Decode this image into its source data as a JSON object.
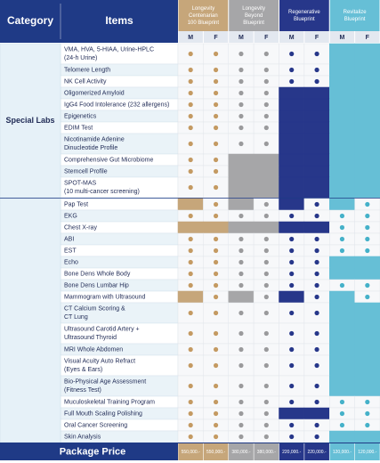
{
  "header": {
    "category": "Category",
    "items": "Items",
    "packages": [
      {
        "name": [
          "Longevity",
          "Centenarian",
          "100 Blueprint"
        ],
        "m": "M",
        "f": "F",
        "color": "#c6a67a",
        "dot": "#c49a62"
      },
      {
        "name": [
          "Longevity",
          "Beyond",
          "Blueprint"
        ],
        "m": "M",
        "f": "F",
        "color": "#a6a6a8",
        "dot": "#9a9a9c"
      },
      {
        "name": [
          "Regenerative",
          "Blueprint"
        ],
        "m": "M",
        "f": "F",
        "color": "#27378a",
        "dot": "#27378a"
      },
      {
        "name": [
          "Revitalize",
          "Blueprint"
        ],
        "m": "M",
        "f": "F",
        "color": "#66bfd6",
        "dot": "#45b1c9"
      }
    ]
  },
  "sections": [
    {
      "category": "Special Labs",
      "rows": [
        {
          "item": [
            "VMA, HVA, 5-HIAA, Urine-HPLC",
            "(24-h Urine)"
          ],
          "cells": [
            true,
            true,
            true,
            true,
            true,
            true,
            false,
            false
          ]
        },
        {
          "item": [
            "Telomere Length"
          ],
          "cells": [
            true,
            true,
            true,
            true,
            true,
            true,
            false,
            false
          ]
        },
        {
          "item": [
            "NK Cell Activity"
          ],
          "cells": [
            true,
            true,
            true,
            true,
            true,
            true,
            false,
            false
          ]
        },
        {
          "item": [
            "Oligomerized Amyloid"
          ],
          "cells": [
            true,
            true,
            true,
            true,
            false,
            false,
            false,
            false
          ]
        },
        {
          "item": [
            "IgG4 Food Intolerance (232 allergens)"
          ],
          "cells": [
            true,
            true,
            true,
            true,
            false,
            false,
            false,
            false
          ]
        },
        {
          "item": [
            "Epigenetics"
          ],
          "cells": [
            true,
            true,
            true,
            true,
            false,
            false,
            false,
            false
          ]
        },
        {
          "item": [
            "EDIM Test"
          ],
          "cells": [
            true,
            true,
            true,
            true,
            false,
            false,
            false,
            false
          ]
        },
        {
          "item": [
            "Nicotinamide Adenine",
            "Dinucleotide Profile"
          ],
          "cells": [
            true,
            true,
            true,
            true,
            false,
            false,
            false,
            false
          ]
        },
        {
          "item": [
            "Comprehensive Gut Microbiome"
          ],
          "cells": [
            true,
            true,
            false,
            false,
            false,
            false,
            false,
            false
          ]
        },
        {
          "item": [
            "Stemcell Profile"
          ],
          "cells": [
            true,
            true,
            false,
            false,
            false,
            false,
            false,
            false
          ]
        },
        {
          "item": [
            "SPOT-MAS",
            "(10 multi-cancer screening)"
          ],
          "cells": [
            true,
            true,
            false,
            false,
            false,
            false,
            false,
            false
          ]
        }
      ]
    },
    {
      "rows": [
        {
          "item": [
            "Pap Test"
          ],
          "cells": [
            false,
            true,
            false,
            true,
            false,
            true,
            false,
            true
          ]
        },
        {
          "item": [
            "EKG"
          ],
          "cells": [
            true,
            true,
            true,
            true,
            true,
            true,
            true,
            true
          ]
        },
        {
          "item": [
            "Chest X-ray"
          ],
          "cells": [
            false,
            false,
            false,
            false,
            false,
            false,
            true,
            true
          ]
        },
        {
          "item": [
            "ABI"
          ],
          "cells": [
            true,
            true,
            true,
            true,
            true,
            true,
            true,
            true
          ]
        },
        {
          "item": [
            "EST"
          ],
          "cells": [
            true,
            true,
            true,
            true,
            true,
            true,
            true,
            true
          ]
        },
        {
          "item": [
            "Echo"
          ],
          "cells": [
            true,
            true,
            true,
            true,
            true,
            true,
            false,
            false
          ]
        },
        {
          "item": [
            "Bone Dens Whole Body"
          ],
          "cells": [
            true,
            true,
            true,
            true,
            true,
            true,
            false,
            false
          ]
        },
        {
          "item": [
            "Bone Dens Lumbar Hip"
          ],
          "cells": [
            true,
            true,
            true,
            true,
            true,
            true,
            true,
            true
          ]
        },
        {
          "item": [
            "Mammogram with Ultrasound"
          ],
          "cells": [
            false,
            true,
            false,
            true,
            false,
            true,
            false,
            true
          ]
        },
        {
          "item": [
            "CT Calcium Scoring &",
            "CT Lung"
          ],
          "cells": [
            true,
            true,
            true,
            true,
            true,
            true,
            false,
            false
          ]
        },
        {
          "item": [
            "Ultrasound Carotid Artery +",
            "Ultrasound Thyroid"
          ],
          "cells": [
            true,
            true,
            true,
            true,
            true,
            true,
            false,
            false
          ]
        },
        {
          "item": [
            "MRI Whole Abdomen"
          ],
          "cells": [
            true,
            true,
            true,
            true,
            true,
            true,
            false,
            false
          ]
        },
        {
          "item": [
            "Visual Acuity Auto Refract",
            "(Eyes & Ears)"
          ],
          "cells": [
            true,
            true,
            true,
            true,
            true,
            true,
            false,
            false
          ]
        },
        {
          "item": [
            "Bio-Physical Age Assessment",
            "(Fitness Test)"
          ],
          "cells": [
            true,
            true,
            true,
            true,
            true,
            true,
            false,
            false
          ]
        },
        {
          "item": [
            "Muculoskeletal Training Program"
          ],
          "cells": [
            true,
            true,
            true,
            true,
            true,
            true,
            true,
            true
          ]
        },
        {
          "item": [
            "Full Mouth Scaling Polishing"
          ],
          "cells": [
            true,
            true,
            true,
            true,
            false,
            false,
            true,
            true
          ]
        },
        {
          "item": [
            "Oral Cancer Screening"
          ],
          "cells": [
            true,
            true,
            true,
            true,
            true,
            true,
            true,
            true
          ]
        },
        {
          "item": [
            "Skin Analysis"
          ],
          "cells": [
            true,
            true,
            true,
            true,
            true,
            true,
            false,
            false
          ]
        }
      ]
    }
  ],
  "footer": {
    "label": "Package Price",
    "prices": [
      "550,000.-",
      "550,000.-",
      "380,000.-",
      "380,000.-",
      "220,000.-",
      "220,000.-",
      "120,000.-",
      "120,000.-"
    ]
  }
}
